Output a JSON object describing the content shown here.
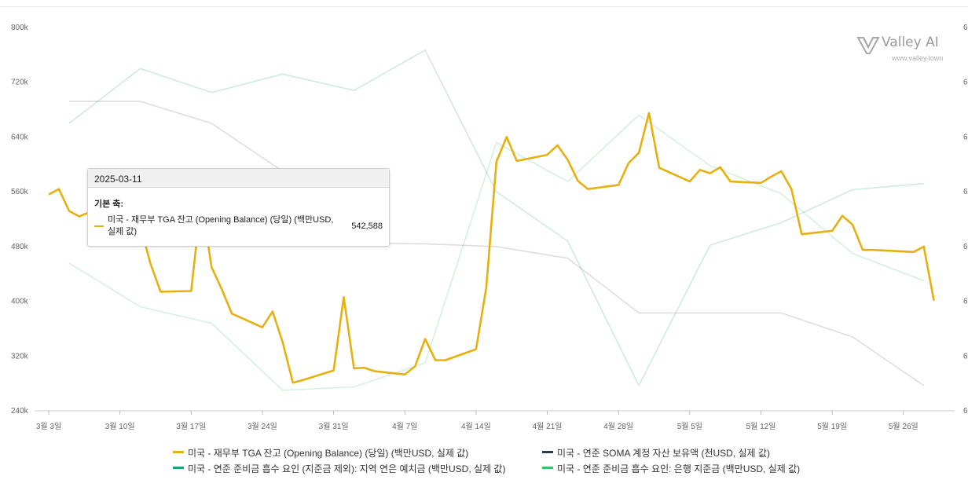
{
  "chart_data": {
    "type": "line",
    "x_tick_labels": [
      "3월 3일",
      "3월 10일",
      "3월 17일",
      "3월 24일",
      "3월 31일",
      "4월 7일",
      "4월 14일",
      "4월 21일",
      "4월 28일",
      "5월 5일",
      "5월 12일",
      "5월 19일",
      "5월 26일"
    ],
    "y_left": {
      "ylim": [
        240,
        800
      ],
      "ticks": [
        "800k",
        "720k",
        "640k",
        "560k",
        "480k",
        "400k",
        "320k",
        "240k"
      ]
    },
    "y_right": {
      "tick_label_visible_prefix": "6"
    },
    "series": [
      {
        "name": "미국 - 재무부 TGA 잔고 (Opening Balance) (당일) (백만USD, 실제 값)",
        "color": "#e6b010",
        "axis": "left",
        "x": [
          "2025-03-03",
          "2025-03-04",
          "2025-03-05",
          "2025-03-06",
          "2025-03-07",
          "2025-03-10",
          "2025-03-11",
          "2025-03-12",
          "2025-03-13",
          "2025-03-14",
          "2025-03-17",
          "2025-03-18",
          "2025-03-19",
          "2025-03-20",
          "2025-03-21",
          "2025-03-24",
          "2025-03-25",
          "2025-03-26",
          "2025-03-27",
          "2025-03-28",
          "2025-03-31",
          "2025-04-01",
          "2025-04-02",
          "2025-04-03",
          "2025-04-04",
          "2025-04-07",
          "2025-04-08",
          "2025-04-09",
          "2025-04-10",
          "2025-04-11",
          "2025-04-14",
          "2025-04-15",
          "2025-04-16",
          "2025-04-17",
          "2025-04-18",
          "2025-04-21",
          "2025-04-22",
          "2025-04-23",
          "2025-04-24",
          "2025-04-25",
          "2025-04-28",
          "2025-04-29",
          "2025-04-30",
          "2025-05-01",
          "2025-05-02",
          "2025-05-05",
          "2025-05-06",
          "2025-05-07",
          "2025-05-08",
          "2025-05-09",
          "2025-05-12",
          "2025-05-13",
          "2025-05-14",
          "2025-05-15",
          "2025-05-16",
          "2025-05-19",
          "2025-05-20",
          "2025-05-21",
          "2025-05-22",
          "2025-05-23",
          "2025-05-27",
          "2025-05-28",
          "2025-05-29"
        ],
        "values": [
          556,
          564,
          532,
          524,
          530,
          548,
          542.588,
          510,
          455,
          414,
          415,
          550,
          450,
          418,
          382,
          362,
          385,
          340,
          281,
          285,
          299,
          406,
          302,
          303,
          298,
          293,
          305,
          345,
          314,
          314,
          330,
          420,
          604,
          640,
          605,
          614,
          628,
          607,
          576,
          564,
          570,
          602,
          617,
          675,
          595,
          575,
          592,
          587,
          596,
          575,
          573,
          582,
          590,
          564,
          498,
          503,
          525,
          512,
          475,
          475,
          472,
          480,
          401
        ]
      },
      {
        "name": "미국 - 연준 SOMA 계정 자산 보유액 (천USD, 실제 값)",
        "color": "#222222",
        "axis": "right",
        "x": [
          "2025-03-05",
          "2025-03-12",
          "2025-03-19",
          "2025-03-26",
          "2025-04-02",
          "2025-04-09",
          "2025-04-16",
          "2025-04-23",
          "2025-04-30",
          "2025-05-07",
          "2025-05-14",
          "2025-05-21",
          "2025-05-28"
        ],
        "values": [
          692,
          692,
          660,
          590,
          485,
          484,
          480,
          463,
          383,
          383,
          383,
          348,
          277
        ]
      },
      {
        "name": "미국 - 연준 준비금 흡수 요인 (지준금 제외): 지역 연은 예치금 (백만USD, 실제 값)",
        "color": "#1f9e7a",
        "axis": "right",
        "x": [
          "2025-03-05",
          "2025-03-12",
          "2025-03-19",
          "2025-03-26",
          "2025-04-02",
          "2025-04-09",
          "2025-04-16",
          "2025-04-23",
          "2025-04-30",
          "2025-05-07",
          "2025-05-14",
          "2025-05-21",
          "2025-05-28"
        ],
        "values": [
          660,
          740,
          705,
          732,
          708,
          767,
          560,
          488,
          277,
          482,
          515,
          563,
          572
        ]
      },
      {
        "name": "미국 - 연준 준비금 흡수 요인: 은행 지준금 (백만USD, 실제 값)",
        "color": "#36c26a",
        "axis": "right",
        "x": [
          "2025-03-05",
          "2025-03-12",
          "2025-03-19",
          "2025-03-26",
          "2025-04-02",
          "2025-04-09",
          "2025-04-16",
          "2025-04-23",
          "2025-04-30",
          "2025-05-07",
          "2025-05-14",
          "2025-05-21",
          "2025-05-28"
        ],
        "values": [
          456,
          392,
          368,
          270,
          275,
          310,
          632,
          575,
          672,
          598,
          557,
          470,
          430
        ]
      }
    ],
    "grid": false,
    "legend_position": "bottom"
  },
  "tooltip": {
    "date": "2025-03-11",
    "axis_label": "기본 축:",
    "series_name": "미국 - 재무부 TGA 잔고 (Opening Balance) (당일) (백만USD, 실제 값)",
    "value": "542,588"
  },
  "logo": {
    "name": "Valley AI",
    "url": "www.valley.town"
  }
}
